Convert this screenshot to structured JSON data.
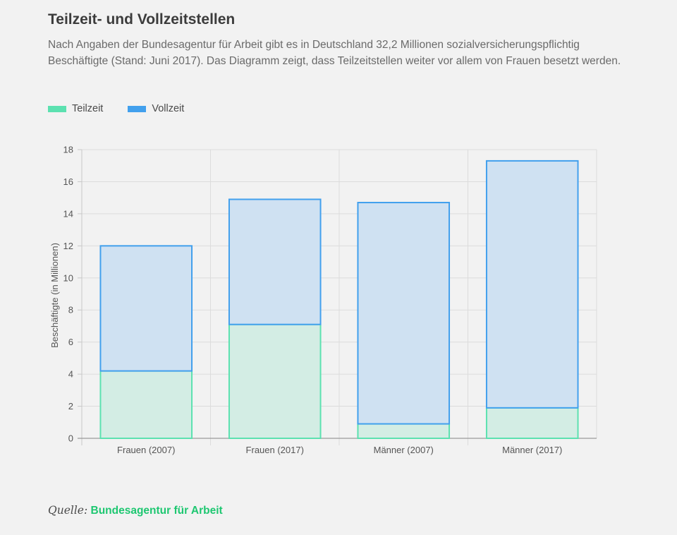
{
  "title": "Teilzeit- und Vollzeitstellen",
  "subtitle": "Nach Angaben der Bundesagentur für Arbeit gibt es in Deutschland 32,2 Millionen sozialversicherungspflichtig Beschäftigte (Stand: Juni 2017). Das Diagramm zeigt, dass Teilzeitstellen weiter vor allem von Frauen besetzt werden.",
  "legend": [
    {
      "label": "Teilzeit",
      "color": "#5ce1b0"
    },
    {
      "label": "Vollzeit",
      "color": "#42a0ed"
    }
  ],
  "source": {
    "label": "Quelle:",
    "link_text": "Bundesagentur für Arbeit"
  },
  "colors": {
    "teilzeit_fill": "#d3ede4",
    "teilzeit_stroke": "#5ce1b0",
    "vollzeit_fill": "#cfe1f2",
    "vollzeit_stroke": "#42a0ed",
    "source_link": "#1ec771"
  },
  "chart_data": {
    "type": "bar",
    "stacked": true,
    "categories": [
      "Frauen (2007)",
      "Frauen (2017)",
      "Männer (2007)",
      "Männer (2017)"
    ],
    "series": [
      {
        "name": "Teilzeit",
        "values": [
          4.2,
          7.1,
          0.9,
          1.9
        ]
      },
      {
        "name": "Vollzeit",
        "values": [
          7.8,
          7.8,
          13.8,
          15.4
        ]
      }
    ],
    "ylabel": "Beschäftigte (in Millionen)",
    "xlabel": "",
    "ylim": [
      0,
      18
    ],
    "yticks": [
      0,
      2,
      4,
      6,
      8,
      10,
      12,
      14,
      16,
      18
    ],
    "grid": true,
    "legend_position": "top-left"
  }
}
